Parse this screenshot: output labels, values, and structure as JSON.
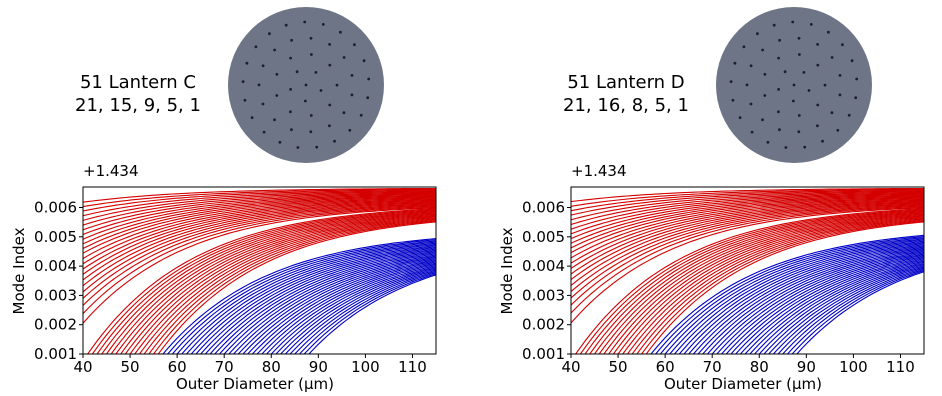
{
  "colors": {
    "fiber_fill": "#6e7586",
    "core_dot": "#1c1f2c",
    "red_series": "#d40000",
    "blue_series": "#0000c8"
  },
  "chart_data": [
    {
      "type": "line",
      "lantern_title": "51 Lantern C",
      "core_counts": "21, 15, 9, 5, 1",
      "xlabel": "Outer Diameter (μm)",
      "ylabel": "Mode Index",
      "offset_label": "+1.434",
      "xlim": [
        40,
        115
      ],
      "ylim": [
        0.001,
        0.0067
      ],
      "xticks": [
        "40",
        "50",
        "60",
        "70",
        "80",
        "90",
        "100",
        "110"
      ],
      "yticks": [
        "0.001",
        "0.002",
        "0.003",
        "0.004",
        "0.005",
        "0.006"
      ],
      "grid": false,
      "series_groups": [
        {
          "color": "red",
          "start_x": [
            40,
            40,
            40,
            40,
            40,
            40,
            40,
            40,
            40,
            40,
            40,
            40,
            40,
            40,
            40,
            40,
            40,
            40,
            40,
            40,
            40,
            40,
            40,
            41,
            42,
            43,
            44,
            45,
            46,
            47,
            48,
            49,
            50,
            51,
            52,
            53,
            54,
            55,
            56
          ],
          "start_y": [
            0.00618,
            0.00603,
            0.00588,
            0.00572,
            0.00556,
            0.0054,
            0.00524,
            0.00508,
            0.00492,
            0.00476,
            0.0046,
            0.00444,
            0.00426,
            0.00408,
            0.0039,
            0.00372,
            0.00353,
            0.00333,
            0.00312,
            0.0029,
            0.00266,
            0.00238,
            0.00205,
            0.001,
            0.001,
            0.001,
            0.001,
            0.001,
            0.001,
            0.001,
            0.001,
            0.001,
            0.001,
            0.001,
            0.001,
            0.001,
            0.001,
            0.001,
            0.001
          ],
          "end_y": [
            0.00665,
            0.00662,
            0.00659,
            0.00656,
            0.00653,
            0.0065,
            0.00647,
            0.00644,
            0.00641,
            0.00638,
            0.00635,
            0.00632,
            0.00629,
            0.00626,
            0.00623,
            0.0062,
            0.00617,
            0.00614,
            0.00611,
            0.00608,
            0.00605,
            0.00602,
            0.00599,
            0.00596,
            0.00593,
            0.0059,
            0.00587,
            0.00584,
            0.00581,
            0.00578,
            0.00575,
            0.00572,
            0.00569,
            0.00566,
            0.00563,
            0.0056,
            0.00557,
            0.00554,
            0.00551
          ]
        },
        {
          "color": "blue",
          "start_x": [
            57,
            58,
            59,
            60,
            61,
            62,
            63,
            64,
            65,
            66,
            67,
            68,
            69,
            70,
            71,
            72,
            73,
            74,
            75,
            76,
            77,
            78,
            79,
            80,
            81,
            82,
            83,
            84,
            85,
            86,
            87,
            88
          ],
          "start_y": [
            0.001,
            0.001,
            0.001,
            0.001,
            0.001,
            0.001,
            0.001,
            0.001,
            0.001,
            0.001,
            0.001,
            0.001,
            0.001,
            0.001,
            0.001,
            0.001,
            0.001,
            0.001,
            0.001,
            0.001,
            0.001,
            0.001,
            0.001,
            0.001,
            0.001,
            0.001,
            0.001,
            0.001,
            0.001,
            0.001,
            0.001,
            0.001
          ],
          "end_y": [
            0.00494,
            0.0049,
            0.00486,
            0.00482,
            0.00478,
            0.00474,
            0.0047,
            0.00466,
            0.00462,
            0.00458,
            0.00454,
            0.0045,
            0.00446,
            0.00442,
            0.00438,
            0.00434,
            0.0043,
            0.00426,
            0.00422,
            0.00418,
            0.00414,
            0.0041,
            0.00406,
            0.00402,
            0.00398,
            0.00394,
            0.0039,
            0.00386,
            0.00382,
            0.00378,
            0.00374,
            0.0037
          ]
        }
      ]
    },
    {
      "type": "line",
      "lantern_title": "51 Lantern D",
      "core_counts": "21, 16, 8, 5, 1",
      "xlabel": "Outer Diameter (μm)",
      "ylabel": "Mode Index",
      "offset_label": "+1.434",
      "xlim": [
        40,
        115
      ],
      "ylim": [
        0.001,
        0.0067
      ],
      "xticks": [
        "40",
        "50",
        "60",
        "70",
        "80",
        "90",
        "100",
        "110"
      ],
      "yticks": [
        "0.001",
        "0.002",
        "0.003",
        "0.004",
        "0.005",
        "0.006"
      ],
      "grid": false,
      "series_groups": [
        {
          "color": "red",
          "start_x": [
            40,
            40,
            40,
            40,
            40,
            40,
            40,
            40,
            40,
            40,
            40,
            40,
            40,
            40,
            40,
            40,
            40,
            40,
            40,
            40,
            40,
            40,
            40,
            41,
            42,
            43,
            44,
            45,
            46,
            47,
            48,
            49,
            50,
            51,
            52,
            53,
            54,
            55,
            56
          ],
          "start_y": [
            0.0062,
            0.00604,
            0.00589,
            0.00574,
            0.00558,
            0.00542,
            0.00526,
            0.0051,
            0.00494,
            0.00478,
            0.00462,
            0.00446,
            0.00428,
            0.0041,
            0.00392,
            0.00373,
            0.00354,
            0.00334,
            0.00313,
            0.00291,
            0.00267,
            0.0024,
            0.00206,
            0.001,
            0.001,
            0.001,
            0.001,
            0.001,
            0.001,
            0.001,
            0.001,
            0.001,
            0.001,
            0.001,
            0.001,
            0.001,
            0.001,
            0.001,
            0.001
          ],
          "end_y": [
            0.00665,
            0.00662,
            0.00659,
            0.00656,
            0.00653,
            0.0065,
            0.00647,
            0.00644,
            0.00641,
            0.00638,
            0.00635,
            0.00632,
            0.00629,
            0.00626,
            0.00623,
            0.0062,
            0.00617,
            0.00614,
            0.00611,
            0.00608,
            0.00605,
            0.00602,
            0.00599,
            0.00596,
            0.00593,
            0.0059,
            0.00587,
            0.00584,
            0.00581,
            0.00578,
            0.00575,
            0.00572,
            0.00569,
            0.00566,
            0.00563,
            0.0056,
            0.00557,
            0.00554,
            0.00551
          ]
        },
        {
          "color": "blue",
          "start_x": [
            57,
            58,
            59,
            60,
            61,
            62,
            63,
            64,
            65,
            66,
            67,
            68,
            69,
            70,
            71,
            72,
            73,
            74,
            75,
            76,
            77,
            78,
            79,
            80,
            81,
            82,
            83,
            84,
            85,
            86,
            87,
            88
          ],
          "start_y": [
            0.001,
            0.001,
            0.001,
            0.001,
            0.001,
            0.001,
            0.001,
            0.001,
            0.001,
            0.001,
            0.001,
            0.001,
            0.001,
            0.001,
            0.001,
            0.001,
            0.001,
            0.001,
            0.001,
            0.001,
            0.001,
            0.001,
            0.001,
            0.001,
            0.001,
            0.001,
            0.001,
            0.001,
            0.001,
            0.001,
            0.001,
            0.001
          ],
          "end_y": [
            0.00505,
            0.00501,
            0.00497,
            0.00493,
            0.00489,
            0.00485,
            0.00481,
            0.00477,
            0.00473,
            0.00469,
            0.00465,
            0.00461,
            0.00457,
            0.00453,
            0.00449,
            0.00445,
            0.00441,
            0.00437,
            0.00433,
            0.00429,
            0.00425,
            0.00421,
            0.00417,
            0.00413,
            0.00409,
            0.00405,
            0.00401,
            0.00397,
            0.00393,
            0.00389,
            0.00385,
            0.00381
          ]
        }
      ]
    }
  ]
}
